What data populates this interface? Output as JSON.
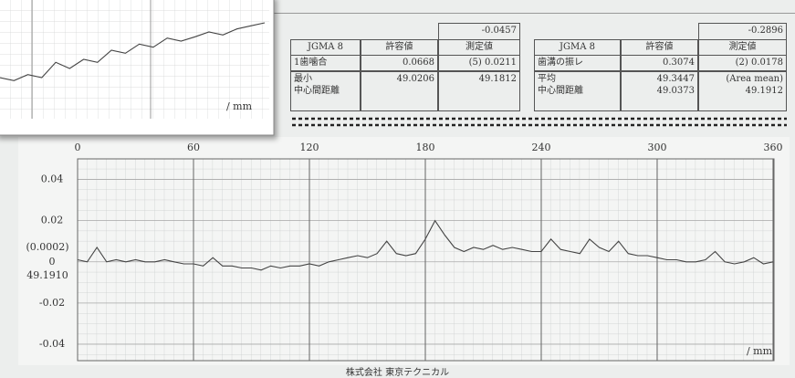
{
  "chart_data": [
    {
      "type": "line",
      "color": "#444444",
      "grid": true,
      "xlim": [
        0,
        360
      ],
      "xticks": [
        0,
        60,
        120,
        180,
        240,
        300,
        360
      ],
      "ylim": [
        -0.048,
        0.05
      ],
      "yticks": [
        0.04,
        0.02,
        0,
        -0.02,
        -0.04
      ],
      "annotations": [
        "(0.0002)",
        "49.1910"
      ],
      "unit": "/ mm",
      "x": [
        0,
        5,
        10,
        15,
        20,
        25,
        30,
        35,
        40,
        45,
        50,
        55,
        60,
        65,
        70,
        75,
        80,
        85,
        90,
        95,
        100,
        105,
        110,
        115,
        120,
        125,
        130,
        135,
        140,
        145,
        150,
        155,
        160,
        165,
        170,
        175,
        180,
        185,
        190,
        195,
        200,
        205,
        210,
        215,
        220,
        225,
        230,
        235,
        240,
        245,
        250,
        255,
        260,
        265,
        270,
        275,
        280,
        285,
        290,
        295,
        300,
        305,
        310,
        315,
        320,
        325,
        330,
        335,
        340,
        345,
        350,
        355,
        360
      ],
      "values": [
        0.001,
        0.0,
        0.007,
        0.0,
        0.001,
        0.0,
        0.001,
        0.0,
        0.0,
        0.001,
        0.0,
        -0.001,
        -0.001,
        -0.002,
        0.002,
        -0.002,
        -0.002,
        -0.003,
        -0.003,
        -0.004,
        -0.002,
        -0.003,
        -0.002,
        -0.002,
        -0.001,
        -0.002,
        0.0,
        0.001,
        0.002,
        0.003,
        0.002,
        0.004,
        0.01,
        0.004,
        0.003,
        0.004,
        0.011,
        0.02,
        0.013,
        0.007,
        0.005,
        0.007,
        0.006,
        0.008,
        0.006,
        0.007,
        0.006,
        0.005,
        0.005,
        0.011,
        0.006,
        0.005,
        0.004,
        0.011,
        0.007,
        0.005,
        0.01,
        0.004,
        0.003,
        0.003,
        0.002,
        0.001,
        0.001,
        0.0,
        0.0,
        0.001,
        0.005,
        0.0,
        -0.001,
        0.0,
        0.002,
        -0.001,
        0.0
      ]
    },
    {
      "type": "line",
      "color": "#444444",
      "unit": "/ mm",
      "xlim": [
        0,
        19
      ],
      "ylim": [
        -0.1,
        1.1
      ],
      "x": [
        0,
        1,
        2,
        3,
        4,
        5,
        6,
        7,
        8,
        9,
        10,
        11,
        12,
        13,
        14,
        15,
        16,
        17,
        18,
        19
      ],
      "values": [
        0.05,
        0.0,
        0.1,
        0.05,
        0.3,
        0.2,
        0.35,
        0.3,
        0.5,
        0.45,
        0.6,
        0.55,
        0.7,
        0.65,
        0.72,
        0.8,
        0.75,
        0.85,
        0.9,
        0.95
      ]
    }
  ],
  "tables": {
    "left": {
      "top": "-0.0457",
      "head": [
        "JGMA 8",
        "許容値",
        "測定値"
      ],
      "rows": [
        [
          [
            "1歯噛合"
          ],
          [
            "0.0668"
          ],
          [
            "(5) 0.0211"
          ]
        ],
        [
          [
            "最小",
            "中心間距離"
          ],
          [
            "49.0206"
          ],
          [
            "49.1812"
          ]
        ]
      ]
    },
    "right": {
      "top": "-0.2896",
      "head": [
        "JGMA 8",
        "許容値",
        "測定値"
      ],
      "rows": [
        [
          [
            "歯溝の振レ"
          ],
          [
            "0.3074"
          ],
          [
            "(2) 0.0178"
          ]
        ],
        [
          [
            "平均",
            "中心間距離"
          ],
          [
            "49.3447",
            "49.0373"
          ],
          [
            "(Area mean)",
            "49.1912"
          ]
        ]
      ]
    }
  },
  "footer": "株式会社 東京テクニカル"
}
